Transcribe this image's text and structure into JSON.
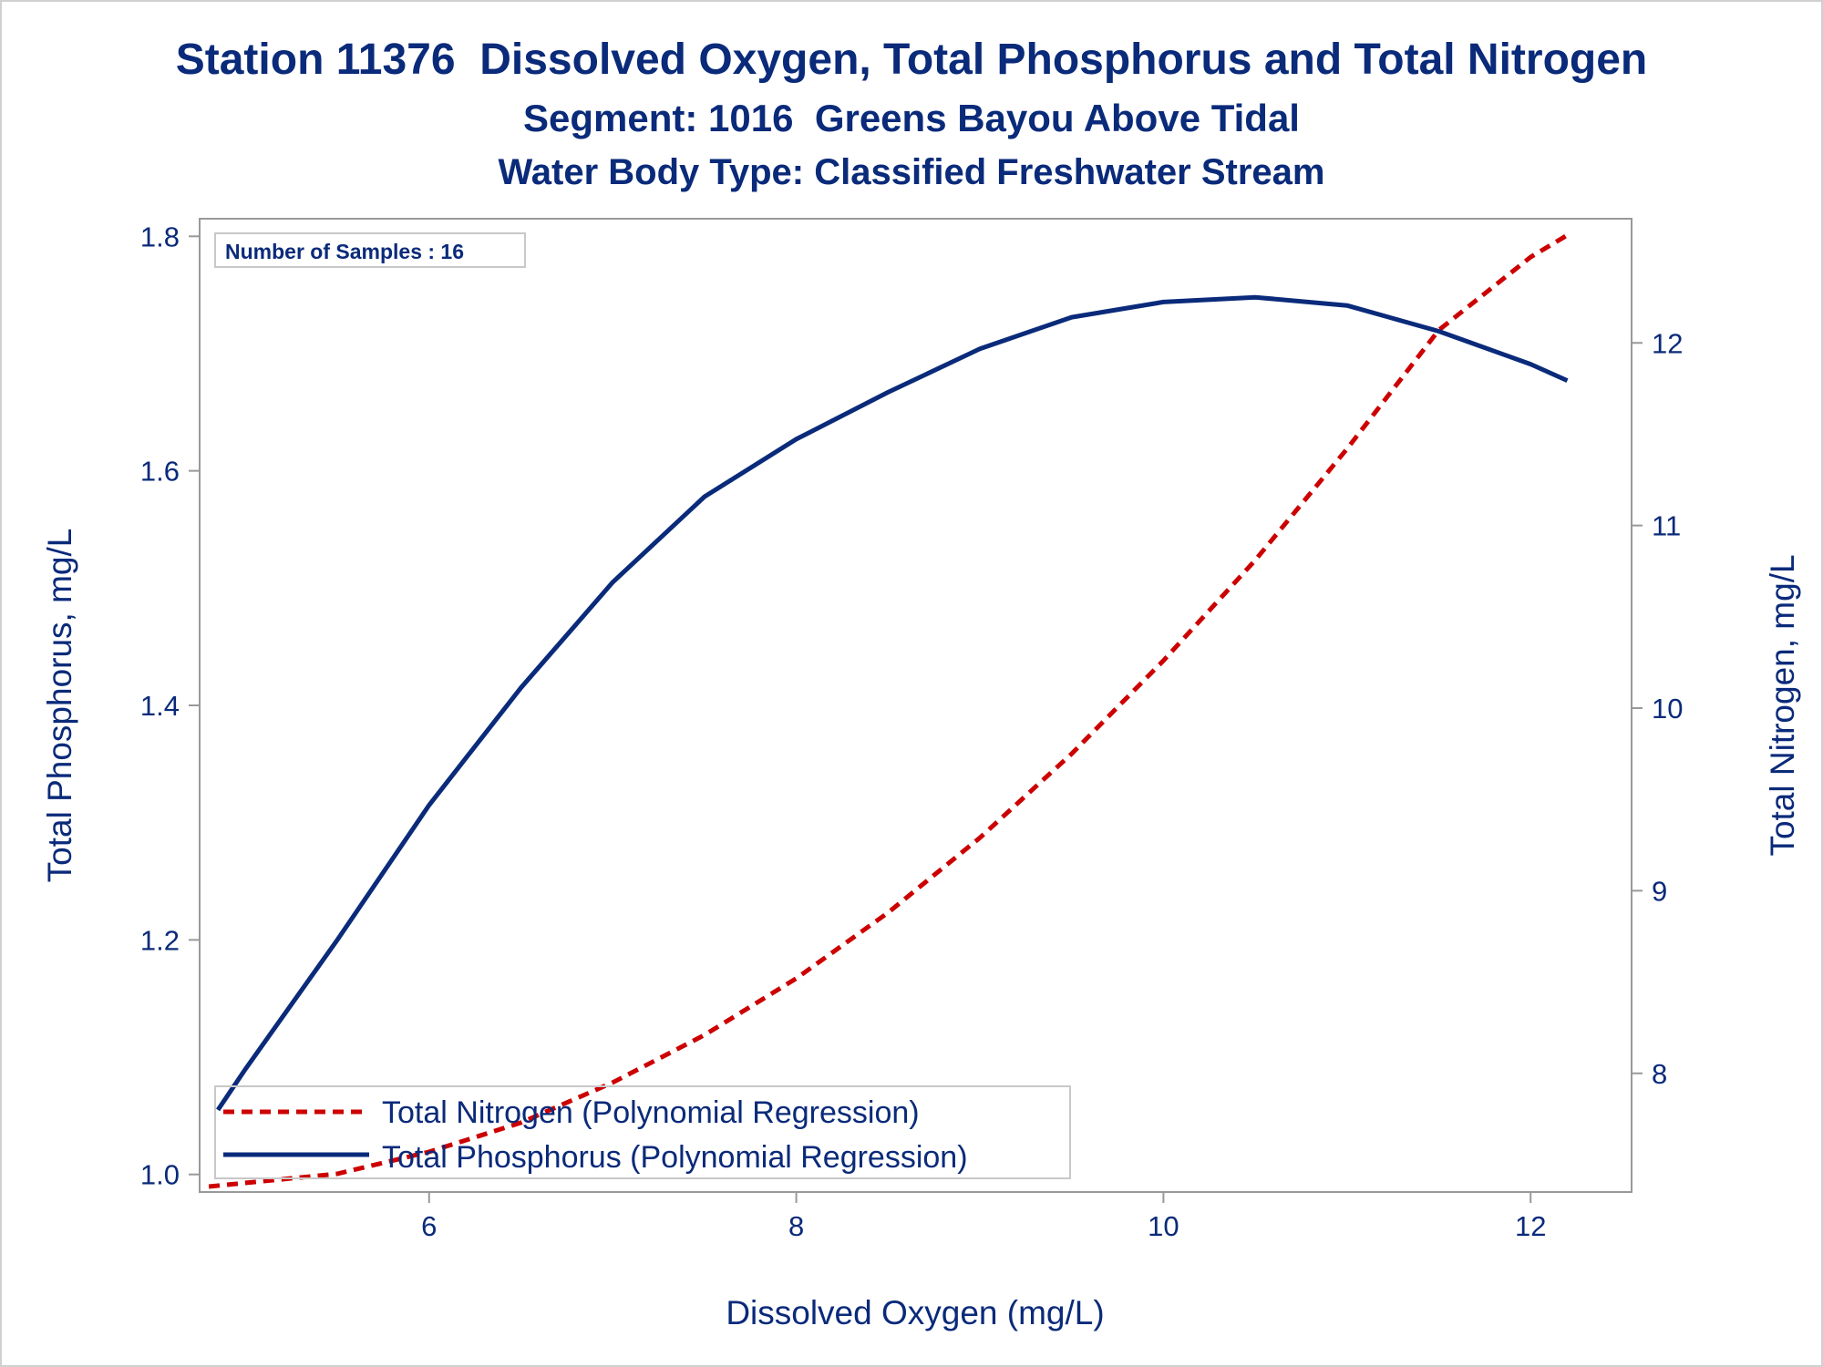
{
  "chart_data": {
    "type": "line",
    "title": "Station 11376  Dissolved Oxygen, Total Phosphorus and Total Nitrogen",
    "subtitle": "Segment: 1016  Greens Bayou Above Tidal",
    "subtitle2": "Water Body Type: Classified Freshwater Stream",
    "xlabel": "Dissolved Oxygen (mg/L)",
    "ylabel": "Total Phosphorus, mg/L",
    "y2label": "Total Nitrogen, mg/L",
    "xlim": [
      4.75,
      12.55
    ],
    "ylim": [
      0.985,
      1.815
    ],
    "y2lim": [
      7.35,
      12.68
    ],
    "x_ticks": [
      6,
      8,
      10,
      12
    ],
    "y_ticks": [
      1.0,
      1.2,
      1.4,
      1.6,
      1.8
    ],
    "y2_ticks": [
      8,
      9,
      10,
      11,
      12
    ],
    "x_tick_labels": [
      "6",
      "8",
      "10",
      "12"
    ],
    "y_tick_labels": [
      "1.0",
      "1.2",
      "1.4",
      "1.6",
      "1.8"
    ],
    "y2_tick_labels": [
      "8",
      "9",
      "10",
      "11",
      "12"
    ],
    "grid": false,
    "annotation": "Number of Samples : 16",
    "legend_position": "bottom-left",
    "series": [
      {
        "name": "Total Nitrogen (Polynomial Regression)",
        "axis": "y2",
        "style": "dashed",
        "color": "#cc0000",
        "x": [
          4.8,
          5.5,
          6.0,
          6.5,
          7.0,
          7.5,
          8.0,
          8.5,
          9.0,
          9.5,
          10.0,
          10.5,
          11.0,
          11.5,
          12.0,
          12.2
        ],
        "y": [
          7.38,
          7.45,
          7.57,
          7.73,
          7.95,
          8.21,
          8.52,
          8.88,
          9.29,
          9.75,
          10.26,
          10.81,
          11.42,
          12.07,
          12.47,
          12.59
        ]
      },
      {
        "name": "Total Phosphorus (Polynomial Regression)",
        "axis": "y",
        "style": "solid",
        "color": "#0a2a7a",
        "x": [
          4.85,
          5.0,
          5.5,
          6.0,
          6.5,
          7.0,
          7.5,
          8.0,
          8.5,
          9.0,
          9.5,
          10.0,
          10.5,
          11.0,
          11.5,
          12.0,
          12.2
        ],
        "y": [
          1.055,
          1.09,
          1.2,
          1.315,
          1.415,
          1.505,
          1.578,
          1.627,
          1.667,
          1.704,
          1.731,
          1.744,
          1.748,
          1.741,
          1.719,
          1.691,
          1.677
        ]
      }
    ]
  }
}
